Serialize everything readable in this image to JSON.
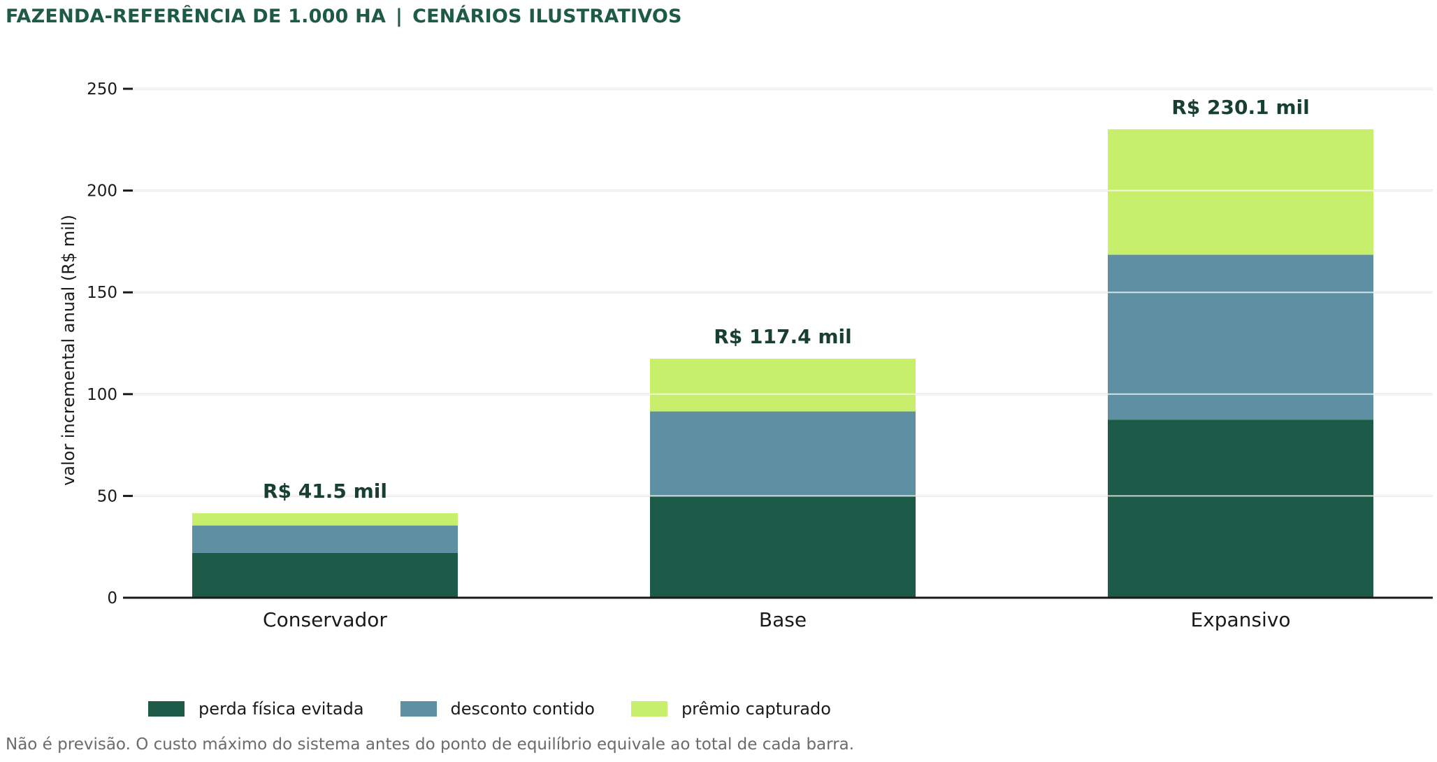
{
  "title": {
    "left": "FAZENDA-REFERÊNCIA DE 1.000 HA",
    "separator": "|",
    "right": "CENÁRIOS ILUSTRATIVOS"
  },
  "footnote": "Não é previsão. O custo máximo do sistema antes do ponto de equilíbrio equivale ao total de cada barra.",
  "colors": {
    "perda": "#1e5a48",
    "desconto": "#5e8fa3",
    "premio": "#c8ef6b",
    "grid": "#e2ded4",
    "title": "#1e5a48",
    "total_label": "#173f33"
  },
  "chart_data": {
    "type": "bar",
    "stacked": true,
    "categories": [
      "Conservador",
      "Base",
      "Expansivo"
    ],
    "series": [
      {
        "name": "perda física evitada",
        "values": [
          22,
          50,
          87.5
        ]
      },
      {
        "name": "desconto contido",
        "values": [
          13.5,
          41.5,
          81
        ]
      },
      {
        "name": "prêmio capturado",
        "values": [
          6,
          25.9,
          61.6
        ]
      }
    ],
    "totals": [
      41.5,
      117.4,
      230.1
    ],
    "total_labels": [
      "R$ 41.5 mil",
      "R$ 117.4 mil",
      "R$ 230.1 mil"
    ],
    "ylabel": "valor incremental anual (R$ mil)",
    "ylim": [
      0,
      250
    ],
    "yticks": [
      0,
      50,
      100,
      150,
      200,
      250
    ],
    "grid": true,
    "legend_position": "bottom-left"
  }
}
